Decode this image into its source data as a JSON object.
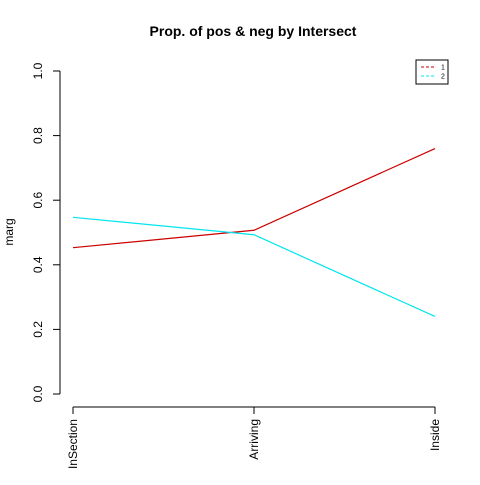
{
  "chart_data": {
    "type": "line",
    "title": "Prop. of pos & neg by Intersect",
    "xlabel": "",
    "ylabel": "marg",
    "categories": [
      "InSection",
      "Arriving",
      "Inside"
    ],
    "ylim": [
      0,
      1
    ],
    "yticks": [
      "0.0",
      "0.2",
      "0.4",
      "0.6",
      "0.8",
      "1.0"
    ],
    "grid": false,
    "legend_position": "top-right",
    "series": [
      {
        "name": "1",
        "values": [
          0.453,
          0.507,
          0.76
        ],
        "color": "#cc0000"
      },
      {
        "name": "2",
        "values": [
          0.547,
          0.493,
          0.24
        ],
        "color": "#00e5ee"
      }
    ]
  }
}
